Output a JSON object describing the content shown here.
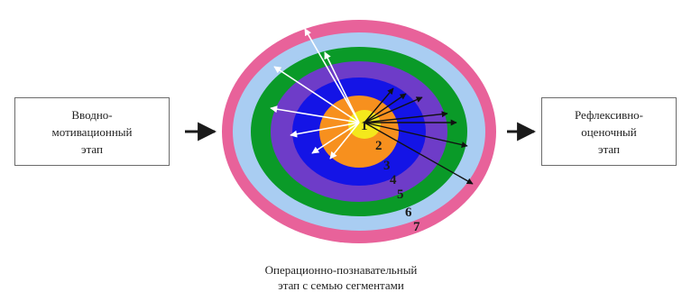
{
  "left_box": {
    "lines": [
      "Вводно-",
      "мотивационный",
      "этап"
    ]
  },
  "right_box": {
    "lines": [
      "Рефлексивно-",
      "оценочный",
      "этап"
    ]
  },
  "caption": {
    "lines": [
      "Операционно-познавательный",
      "этап с семью сегментами"
    ]
  },
  "rings": [
    {
      "number": "1",
      "color": "#f4e81c"
    },
    {
      "number": "2",
      "color": "#f7901e"
    },
    {
      "number": "3",
      "color": "#1414e6"
    },
    {
      "number": "4",
      "color": "#6e3cc8"
    },
    {
      "number": "5",
      "color": "#0a9a28"
    },
    {
      "number": "6",
      "color": "#a9cdf2"
    },
    {
      "number": "7",
      "color": "#e8629a"
    }
  ]
}
